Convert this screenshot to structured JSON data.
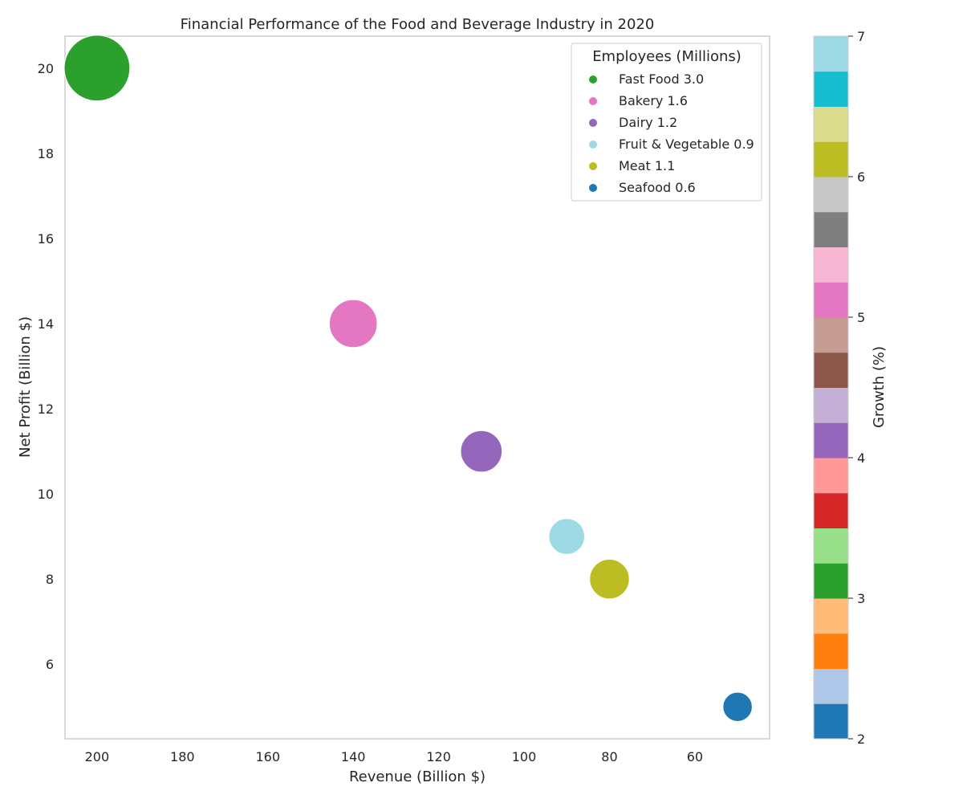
{
  "chart_data": {
    "type": "scatter",
    "title": "Financial Performance of the Food and Beverage Industry in 2020",
    "xlabel": "Revenue (Billion $)",
    "ylabel": "Net Profit (Billion $)",
    "xlim": [
      207.5,
      42.5
    ],
    "ylim": [
      4.25,
      20.75
    ],
    "x_inverted": true,
    "xticks": [
      200,
      180,
      160,
      140,
      120,
      100,
      80,
      60
    ],
    "yticks": [
      6,
      8,
      10,
      12,
      14,
      16,
      18,
      20
    ],
    "grid": false,
    "size_variable": "Employees (Millions)",
    "legend": {
      "title": "Employees (Millions)",
      "position": "top-right"
    },
    "points": [
      {
        "category": "Fast Food",
        "x": 200,
        "y": 20,
        "employees": 3.0,
        "growth": 3.0,
        "color": "#2ca02c",
        "label": "Fast Food 3.0"
      },
      {
        "category": "Bakery",
        "x": 140,
        "y": 14,
        "employees": 1.6,
        "growth": 5.0,
        "color": "#e377c2",
        "label": "Bakery 1.6"
      },
      {
        "category": "Dairy",
        "x": 110,
        "y": 11,
        "employees": 1.2,
        "growth": 4.0,
        "color": "#9467bd",
        "label": "Dairy 1.2"
      },
      {
        "category": "Fruit & Vegetable",
        "x": 90,
        "y": 9,
        "employees": 0.9,
        "growth": 7.0,
        "color": "#9edae5",
        "label": "Fruit & Vegetable 0.9"
      },
      {
        "category": "Meat",
        "x": 80,
        "y": 8,
        "employees": 1.1,
        "growth": 6.0,
        "color": "#bcbd22",
        "label": "Meat 1.1"
      },
      {
        "category": "Seafood",
        "x": 50,
        "y": 5,
        "employees": 0.6,
        "growth": 2.0,
        "color": "#1f77b4",
        "label": "Seafood 0.6"
      }
    ],
    "colorbar": {
      "label": "Growth (%)",
      "range": [
        2,
        7
      ],
      "ticks": [
        2,
        3,
        4,
        5,
        6,
        7
      ],
      "colormap": "tab20",
      "colors": [
        "#1f77b4",
        "#aec7e8",
        "#ff7f0e",
        "#ffbb78",
        "#2ca02c",
        "#98df8a",
        "#d62728",
        "#ff9896",
        "#9467bd",
        "#c5b0d5",
        "#8c564b",
        "#c49c94",
        "#e377c2",
        "#f7b6d2",
        "#7f7f7f",
        "#c7c7c7",
        "#bcbd22",
        "#dbdb8d",
        "#17becf",
        "#9edae5"
      ]
    }
  }
}
